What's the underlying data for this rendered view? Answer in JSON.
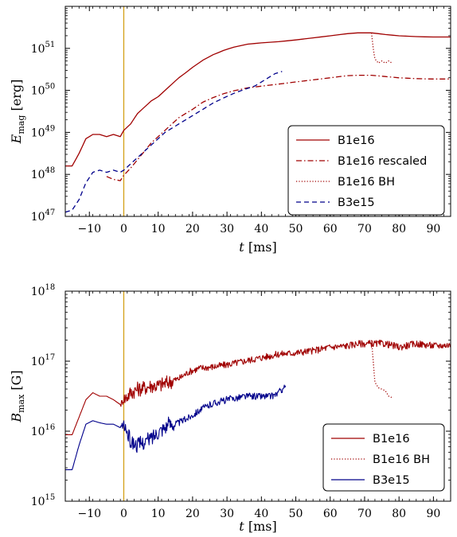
{
  "chart_data": [
    {
      "type": "line",
      "id": "top",
      "xlabel": "t [ms]",
      "ylabel": "E_mag [erg]",
      "ylabel_main": "E",
      "ylabel_sub": "mag",
      "ylabel_unit": " [erg]",
      "xlabel_main": "t",
      "xlabel_unit": " [ms]",
      "xlim": [
        -17,
        95
      ],
      "ylim_log10": [
        47,
        52
      ],
      "y_scale": "log",
      "xticks": [
        -10,
        0,
        10,
        20,
        30,
        40,
        50,
        60,
        70,
        80,
        90
      ],
      "xtick_labels": [
        "−10",
        "0",
        "10",
        "20",
        "30",
        "40",
        "50",
        "60",
        "70",
        "80",
        "90"
      ],
      "yticks_log10": [
        47,
        48,
        49,
        50,
        51
      ],
      "ytick_base": "10",
      "ytick_exps": [
        "47",
        "48",
        "49",
        "50",
        "51"
      ],
      "vline_x": 0,
      "legend_position": "lower-right",
      "series": [
        {
          "name": "B1e16",
          "color": "#a00000",
          "style": "solid",
          "points": [
            [
              -17,
              48.2
            ],
            [
              -15,
              48.2
            ],
            [
              -13,
              48.5
            ],
            [
              -11,
              48.85
            ],
            [
              -9,
              48.95
            ],
            [
              -7,
              48.95
            ],
            [
              -5,
              48.9
            ],
            [
              -3,
              48.95
            ],
            [
              -1,
              48.9
            ],
            [
              0,
              49.05
            ],
            [
              2,
              49.2
            ],
            [
              4,
              49.45
            ],
            [
              6,
              49.6
            ],
            [
              8,
              49.75
            ],
            [
              10,
              49.85
            ],
            [
              12,
              50.0
            ],
            [
              14,
              50.15
            ],
            [
              16,
              50.3
            ],
            [
              18,
              50.42
            ],
            [
              20,
              50.55
            ],
            [
              23,
              50.72
            ],
            [
              26,
              50.85
            ],
            [
              29,
              50.95
            ],
            [
              32,
              51.03
            ],
            [
              36,
              51.1
            ],
            [
              40,
              51.13
            ],
            [
              45,
              51.16
            ],
            [
              50,
              51.2
            ],
            [
              55,
              51.25
            ],
            [
              60,
              51.3
            ],
            [
              65,
              51.35
            ],
            [
              68,
              51.37
            ],
            [
              72,
              51.37
            ],
            [
              76,
              51.33
            ],
            [
              80,
              51.3
            ],
            [
              85,
              51.28
            ],
            [
              90,
              51.27
            ],
            [
              95,
              51.27
            ]
          ]
        },
        {
          "name": "B1e16 rescaled",
          "color": "#a00000",
          "style": "dashdot",
          "points": [
            [
              -5,
              47.95
            ],
            [
              -3,
              47.88
            ],
            [
              -1,
              47.85
            ],
            [
              0,
              47.98
            ],
            [
              2,
              48.15
            ],
            [
              4,
              48.35
            ],
            [
              6,
              48.55
            ],
            [
              8,
              48.75
            ],
            [
              10,
              48.9
            ],
            [
              12,
              49.05
            ],
            [
              14,
              49.2
            ],
            [
              16,
              49.35
            ],
            [
              18,
              49.45
            ],
            [
              20,
              49.55
            ],
            [
              23,
              49.72
            ],
            [
              26,
              49.83
            ],
            [
              29,
              49.92
            ],
            [
              32,
              49.99
            ],
            [
              36,
              50.06
            ],
            [
              40,
              50.1
            ],
            [
              45,
              50.15
            ],
            [
              50,
              50.2
            ],
            [
              55,
              50.25
            ],
            [
              60,
              50.3
            ],
            [
              65,
              50.35
            ],
            [
              68,
              50.36
            ],
            [
              72,
              50.36
            ],
            [
              76,
              50.33
            ],
            [
              80,
              50.3
            ],
            [
              85,
              50.28
            ],
            [
              90,
              50.27
            ],
            [
              95,
              50.27
            ]
          ]
        },
        {
          "name": "B1e16 BH",
          "color": "#a00000",
          "style": "dotted",
          "points": [
            [
              72,
              51.37
            ],
            [
              72.5,
              51.0
            ],
            [
              73,
              50.75
            ],
            [
              74,
              50.65
            ],
            [
              75,
              50.7
            ],
            [
              76,
              50.65
            ],
            [
              77,
              50.7
            ],
            [
              78,
              50.65
            ]
          ]
        },
        {
          "name": "B3e15",
          "color": "#00008b",
          "style": "dashed",
          "points": [
            [
              -17,
              47.1
            ],
            [
              -15,
              47.15
            ],
            [
              -13,
              47.4
            ],
            [
              -11,
              47.8
            ],
            [
              -9,
              48.05
            ],
            [
              -7,
              48.1
            ],
            [
              -5,
              48.05
            ],
            [
              -3,
              48.1
            ],
            [
              -1,
              48.05
            ],
            [
              0,
              48.1
            ],
            [
              2,
              48.25
            ],
            [
              4,
              48.4
            ],
            [
              6,
              48.55
            ],
            [
              8,
              48.7
            ],
            [
              10,
              48.85
            ],
            [
              12,
              49.0
            ],
            [
              14,
              49.1
            ],
            [
              16,
              49.2
            ],
            [
              18,
              49.3
            ],
            [
              20,
              49.4
            ],
            [
              23,
              49.55
            ],
            [
              26,
              49.7
            ],
            [
              29,
              49.82
            ],
            [
              32,
              49.93
            ],
            [
              35,
              50.02
            ],
            [
              38,
              50.1
            ],
            [
              41,
              50.25
            ],
            [
              44,
              50.4
            ],
            [
              46,
              50.45
            ]
          ]
        }
      ]
    },
    {
      "type": "line",
      "id": "bottom",
      "xlabel": "t [ms]",
      "ylabel": "B_max [G]",
      "ylabel_main": "B",
      "ylabel_sub": "max",
      "ylabel_unit": " [G]",
      "xlabel_main": "t",
      "xlabel_unit": " [ms]",
      "xlim": [
        -17,
        95
      ],
      "ylim_log10": [
        15,
        18
      ],
      "y_scale": "log",
      "xticks": [
        -10,
        0,
        10,
        20,
        30,
        40,
        50,
        60,
        70,
        80,
        90
      ],
      "xtick_labels": [
        "−10",
        "0",
        "10",
        "20",
        "30",
        "40",
        "50",
        "60",
        "70",
        "80",
        "90"
      ],
      "yticks_log10": [
        15,
        16,
        17,
        18
      ],
      "ytick_base": "10",
      "ytick_exps": [
        "15",
        "16",
        "17",
        "18"
      ],
      "vline_x": 0,
      "legend_position": "lower-right",
      "series": [
        {
          "name": "B1e16",
          "color": "#a00000",
          "style": "solid",
          "noise": 0.05,
          "points": [
            [
              -17,
              15.95
            ],
            [
              -15,
              15.95
            ],
            [
              -13,
              16.2
            ],
            [
              -11,
              16.45
            ],
            [
              -9,
              16.55
            ],
            [
              -7,
              16.5
            ],
            [
              -5,
              16.5
            ],
            [
              -3,
              16.45
            ],
            [
              -1,
              16.38
            ],
            [
              0,
              16.45
            ],
            [
              2,
              16.55
            ],
            [
              4,
              16.6
            ],
            [
              6,
              16.62
            ],
            [
              8,
              16.65
            ],
            [
              10,
              16.65
            ],
            [
              13,
              16.7
            ],
            [
              16,
              16.75
            ],
            [
              19,
              16.85
            ],
            [
              22,
              16.9
            ],
            [
              26,
              16.92
            ],
            [
              30,
              16.95
            ],
            [
              35,
              17.0
            ],
            [
              40,
              17.05
            ],
            [
              45,
              17.1
            ],
            [
              50,
              17.12
            ],
            [
              55,
              17.15
            ],
            [
              60,
              17.2
            ],
            [
              65,
              17.22
            ],
            [
              68,
              17.25
            ],
            [
              72,
              17.25
            ],
            [
              76,
              17.25
            ],
            [
              80,
              17.2
            ],
            [
              85,
              17.25
            ],
            [
              90,
              17.22
            ],
            [
              95,
              17.23
            ]
          ]
        },
        {
          "name": "B1e16 BH",
          "color": "#a00000",
          "style": "dotted",
          "noise": 0,
          "points": [
            [
              72,
              17.3
            ],
            [
              72.5,
              17.0
            ],
            [
              73,
              16.7
            ],
            [
              74,
              16.62
            ],
            [
              75,
              16.6
            ],
            [
              76,
              16.58
            ],
            [
              77,
              16.5
            ],
            [
              78,
              16.48
            ]
          ]
        },
        {
          "name": "B3e15",
          "color": "#00008b",
          "style": "solid",
          "noise": 0.05,
          "points": [
            [
              -17,
              15.45
            ],
            [
              -15,
              15.45
            ],
            [
              -13,
              15.8
            ],
            [
              -11,
              16.1
            ],
            [
              -9,
              16.15
            ],
            [
              -7,
              16.12
            ],
            [
              -5,
              16.1
            ],
            [
              -3,
              16.1
            ],
            [
              -1,
              16.05
            ],
            [
              0,
              16.1
            ],
            [
              2,
              15.85
            ],
            [
              4,
              15.8
            ],
            [
              6,
              15.85
            ],
            [
              8,
              15.9
            ],
            [
              10,
              16.0
            ],
            [
              13,
              16.1
            ],
            [
              16,
              16.12
            ],
            [
              19,
              16.2
            ],
            [
              22,
              16.3
            ],
            [
              26,
              16.4
            ],
            [
              30,
              16.45
            ],
            [
              35,
              16.5
            ],
            [
              40,
              16.5
            ],
            [
              43,
              16.5
            ],
            [
              45,
              16.55
            ],
            [
              47,
              16.65
            ]
          ]
        }
      ]
    }
  ]
}
